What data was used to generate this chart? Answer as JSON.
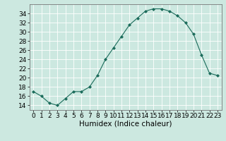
{
  "x": [
    0,
    1,
    2,
    3,
    4,
    5,
    6,
    7,
    8,
    9,
    10,
    11,
    12,
    13,
    14,
    15,
    16,
    17,
    18,
    19,
    20,
    21,
    22,
    23
  ],
  "y": [
    17,
    16,
    14.5,
    14,
    15.5,
    17,
    17,
    18,
    20.5,
    24,
    26.5,
    29,
    31.5,
    33,
    34.5,
    35,
    35,
    34.5,
    33.5,
    32,
    29.5,
    25,
    21,
    20.5
  ],
  "line_color": "#1a6b5a",
  "marker_color": "#1a6b5a",
  "bg_color": "#cce8e0",
  "grid_color": "#ffffff",
  "xlabel": "Humidex (Indice chaleur)",
  "xlim": [
    -0.5,
    23.5
  ],
  "ylim": [
    13,
    36
  ],
  "yticks": [
    14,
    16,
    18,
    20,
    22,
    24,
    26,
    28,
    30,
    32,
    34
  ],
  "xticks": [
    0,
    1,
    2,
    3,
    4,
    5,
    6,
    7,
    8,
    9,
    10,
    11,
    12,
    13,
    14,
    15,
    16,
    17,
    18,
    19,
    20,
    21,
    22,
    23
  ],
  "tick_font_size": 6.5,
  "label_font_size": 7.5,
  "fig_width": 3.2,
  "fig_height": 2.0,
  "dpi": 100
}
